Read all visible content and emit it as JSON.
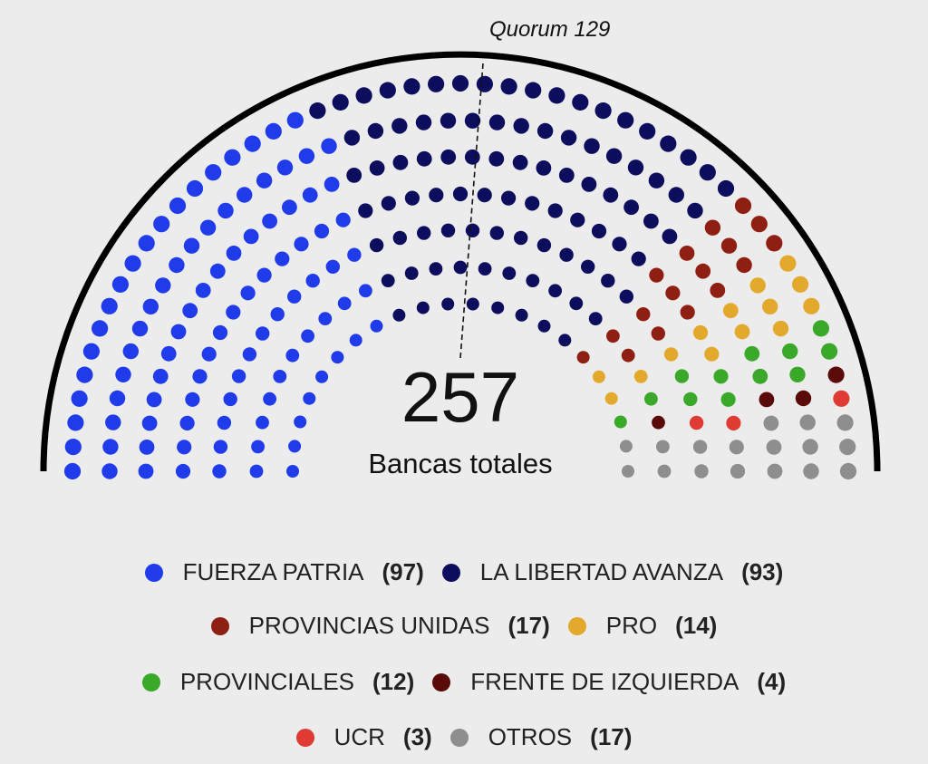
{
  "chart_data": {
    "type": "parliament",
    "title": "",
    "total": 257,
    "total_label": "Bancas totales",
    "quorum_label": "Quorum 129",
    "quorum": 129,
    "series": [
      {
        "name": "FUERZA PATRIA",
        "value": 97,
        "color": "#1f3bea",
        "label": "(97)"
      },
      {
        "name": "LA LIBERTAD AVANZA",
        "value": 93,
        "color": "#0d0d5e",
        "label": "(93)"
      },
      {
        "name": "PROVINCIAS UNIDAS",
        "value": 17,
        "color": "#8f1f12",
        "label": "(17)"
      },
      {
        "name": "PRO",
        "value": 14,
        "color": "#e3a92d",
        "label": "(14)"
      },
      {
        "name": "PROVINCIALES",
        "value": 12,
        "color": "#3aa829",
        "label": "(12)"
      },
      {
        "name": "FRENTE DE IZQUIERDA",
        "value": 4,
        "color": "#5a0a08",
        "label": "(4)"
      },
      {
        "name": "UCR",
        "value": 3,
        "color": "#e03a34",
        "label": "(3)"
      },
      {
        "name": "OTROS",
        "value": 17,
        "color": "#8e8e8e",
        "label": "(17)"
      }
    ],
    "legend_rows": [
      [
        0,
        1
      ],
      [
        2,
        3
      ],
      [
        4,
        5
      ],
      [
        6,
        7
      ]
    ]
  }
}
